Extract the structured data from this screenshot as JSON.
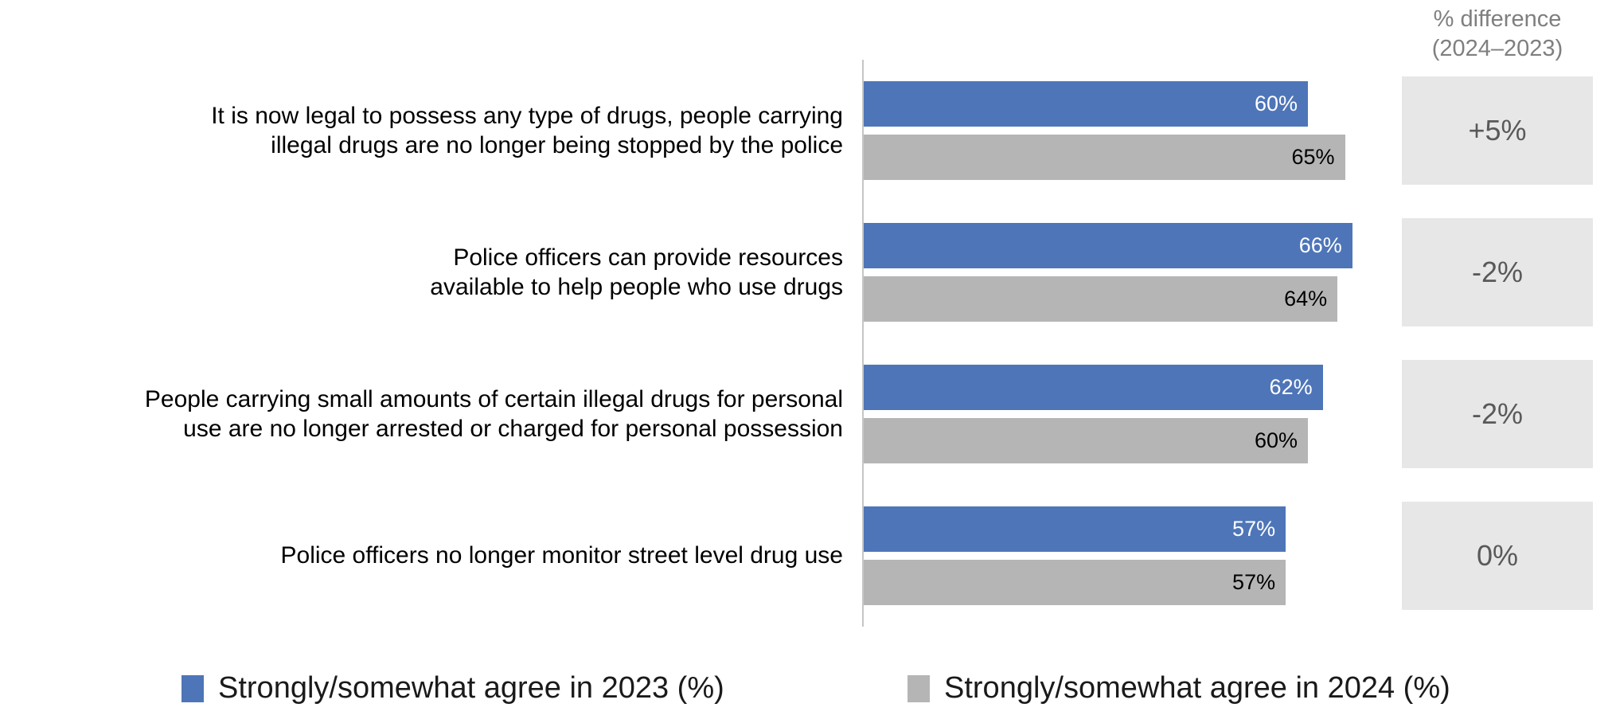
{
  "diff_header": {
    "line1": "% difference",
    "line2": "(2024–2023)"
  },
  "chart_data": {
    "type": "bar",
    "orientation": "horizontal",
    "title": "",
    "xlabel": "",
    "ylabel": "",
    "xlim": [
      0,
      68.5
    ],
    "grid": false,
    "legend_position": "bottom",
    "value_suffix": "%",
    "categories": [
      "It is now legal to possess any type of drugs, people carrying illegal drugs are no longer being stopped by the police",
      "Police officers can provide resources available to help people who use drugs",
      "People carrying small amounts of certain illegal drugs for personal use are no longer arrested or charged for personal possession",
      "Police officers no longer monitor street level drug use"
    ],
    "category_lines": [
      [
        "It is now legal to possess any type of drugs, people carrying",
        "illegal drugs are no longer being stopped by the police"
      ],
      [
        "Police officers can provide resources",
        "available to help people who use drugs"
      ],
      [
        "People carrying small amounts of certain illegal drugs for personal",
        "use are no longer arrested or charged for personal possession"
      ],
      [
        "Police officers no longer monitor street level drug use"
      ]
    ],
    "series": [
      {
        "name": "Strongly/somewhat agree in 2023 (%)",
        "year": 2023,
        "color": "#4e75b8",
        "label_color": "#ffffff",
        "values": [
          60,
          66,
          62,
          57
        ]
      },
      {
        "name": "Strongly/somewhat agree in 2024 (%)",
        "year": 2024,
        "color": "#b5b5b5",
        "label_color": "#000000",
        "values": [
          65,
          64,
          60,
          57
        ]
      }
    ],
    "differences": [
      5,
      -2,
      -2,
      0
    ],
    "difference_labels": [
      "+5%",
      "-2%",
      "-2%",
      "0%"
    ]
  },
  "legend": {
    "items": [
      {
        "label": "Strongly/somewhat agree in 2023 (%)",
        "color": "#4e75b8"
      },
      {
        "label": "Strongly/somewhat agree in 2024 (%)",
        "color": "#b5b5b5"
      }
    ]
  },
  "colors": {
    "diff_box_bg": "#e7e7e7",
    "diff_text": "#595959",
    "header_text": "#7f7f7f",
    "axis_line": "#c6c6c6"
  }
}
